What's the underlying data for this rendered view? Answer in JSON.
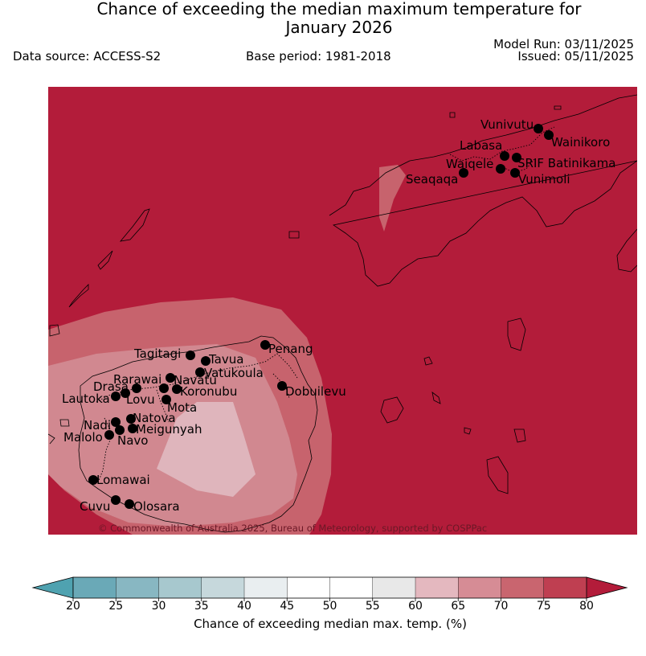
{
  "title_line1": "Chance of exceeding the median maximum temperature for",
  "title_line2": "January 2026",
  "data_source": "Data source: ACCESS-S2",
  "base_period": "Base period: 1981-2018",
  "model_run": "Model Run: 03/11/2025",
  "issued": "Issued: 05/11/2025",
  "copyright": "© Commonwealth of Australia 2025, Bureau of Meteorology, supported by COSPPac",
  "colors": {
    "background_class": "#b31c3a",
    "c70_75": "#c7636d",
    "c65_70": "#d18890",
    "c60_65": "#dfb5bc"
  },
  "stations": [
    {
      "name": "Vunivutu"
    },
    {
      "name": "Wainikoro"
    },
    {
      "name": "Labasa"
    },
    {
      "name": "Waiqele"
    },
    {
      "name": "SRIF Batinikama"
    },
    {
      "name": "Seaqaqa"
    },
    {
      "name": "Vunimoli"
    },
    {
      "name": "Tagitagi"
    },
    {
      "name": "Tavua"
    },
    {
      "name": "Penang"
    },
    {
      "name": "Vatukoula"
    },
    {
      "name": "Rarawai"
    },
    {
      "name": "Navatu"
    },
    {
      "name": "Drasa"
    },
    {
      "name": "Koronubu"
    },
    {
      "name": "Lautoka"
    },
    {
      "name": "Lovu"
    },
    {
      "name": "Dobuilevu"
    },
    {
      "name": "Mota"
    },
    {
      "name": "Natova"
    },
    {
      "name": "Nadi"
    },
    {
      "name": "Meigunyah"
    },
    {
      "name": "Malolo"
    },
    {
      "name": "Navo"
    },
    {
      "name": "Lomawai"
    },
    {
      "name": "Cuvu"
    },
    {
      "name": "Olosara"
    }
  ],
  "colorbar": {
    "label": "Chance of exceeding median max. temp. (%)",
    "ticks": [
      "20",
      "25",
      "30",
      "35",
      "40",
      "45",
      "50",
      "55",
      "60",
      "65",
      "70",
      "75",
      "80"
    ],
    "colors": [
      "#6aa9b7",
      "#88b7c2",
      "#a7c8ce",
      "#c6d8dc",
      "#e9eef0",
      "#ffffff",
      "#ffffff",
      "#e8e8e8",
      "#e4b8bf",
      "#d68c95",
      "#c9656f",
      "#bf3f51"
    ],
    "under_color": "#4fa2b0",
    "over_color": "#b31c3a"
  }
}
